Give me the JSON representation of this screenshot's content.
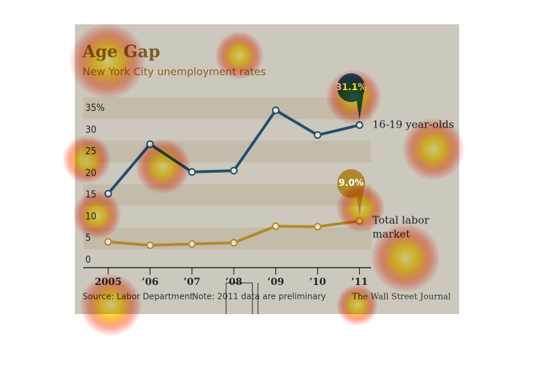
{
  "chart_data": {
    "type": "line",
    "title": "Age Gap",
    "subtitle": "New York City unemployment rates",
    "categories": [
      "2005",
      "’06",
      "’07",
      "’08",
      "’09",
      "’10",
      "’11"
    ],
    "series": [
      {
        "name": "16-19 year-olds",
        "color": "#1f4e6e",
        "values": [
          15.3,
          26.7,
          20.3,
          20.6,
          34.5,
          28.8,
          31.1
        ],
        "value_labels": [
          null,
          null,
          null,
          null,
          null,
          null,
          "31.1%"
        ]
      },
      {
        "name": "Total labor market",
        "color": "#b08a2a",
        "values": [
          4.2,
          3.4,
          3.7,
          4.0,
          7.8,
          7.7,
          9.0
        ],
        "value_labels": [
          null,
          null,
          null,
          null,
          null,
          null,
          "9.0%"
        ]
      }
    ],
    "ylim": [
      0,
      35
    ],
    "yticks": [
      0,
      5,
      10,
      15,
      20,
      25,
      30,
      {
        "value": 35,
        "label": "35%"
      }
    ],
    "source": "Source: Labor Department",
    "note": "Note: 2011 data are preliminary",
    "credit": "The Wall Street Journal"
  }
}
